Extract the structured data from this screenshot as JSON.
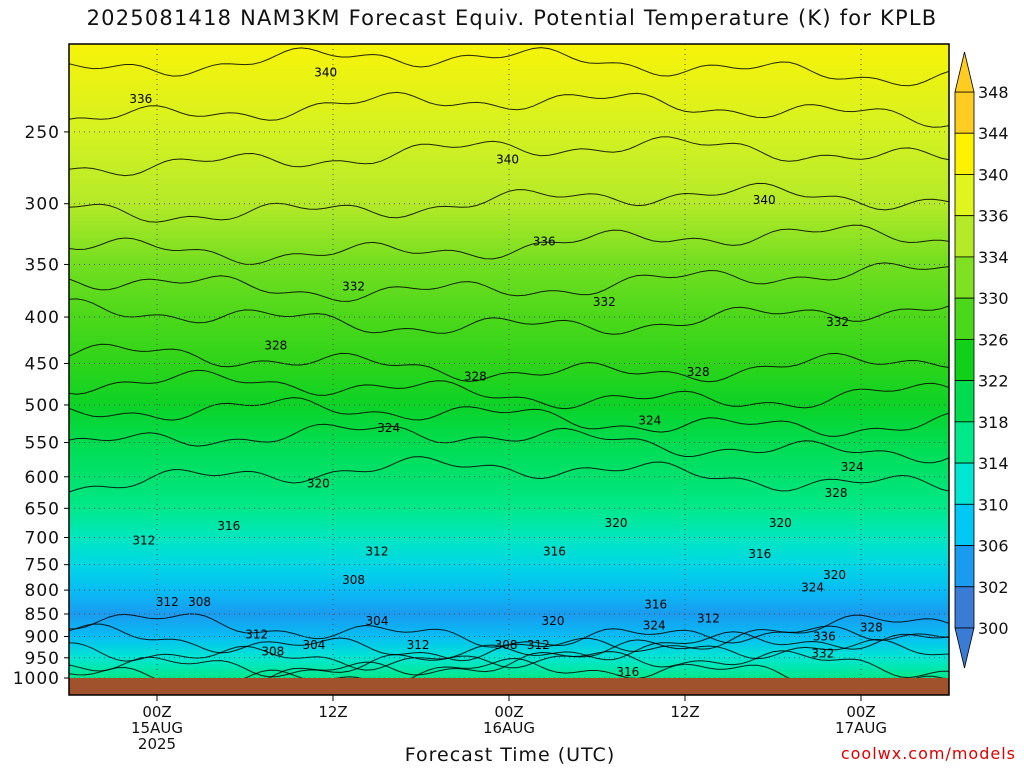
{
  "title": "2025081418 NAM3KM Forecast Equiv. Potential Temperature (K) for KPLB",
  "credit": "coolwx.com/models",
  "colors": {
    "ground": "#a0522d",
    "frame": "#000000",
    "grid": "#555555",
    "credit": "#e00000"
  },
  "chart_data": {
    "type": "heatmap",
    "title": "2025081418 NAM3KM Forecast Equiv. Potential Temperature (K) for KPLB",
    "xlabel": "Forecast Time (UTC)",
    "ylabel": "",
    "x_axis": {
      "ticks": [
        {
          "hour": 6,
          "lines": [
            "00Z",
            "15AUG",
            "2025"
          ]
        },
        {
          "hour": 18,
          "lines": [
            "12Z"
          ]
        },
        {
          "hour": 30,
          "lines": [
            "00Z",
            "16AUG"
          ]
        },
        {
          "hour": 42,
          "lines": [
            "12Z"
          ]
        },
        {
          "hour": 54,
          "lines": [
            "00Z",
            "17AUG"
          ]
        }
      ],
      "range_hours": [
        0,
        60
      ]
    },
    "y_axis": {
      "scale": "log-pressure",
      "unit": "hPa",
      "ticks": [
        250,
        300,
        350,
        400,
        450,
        500,
        550,
        600,
        650,
        700,
        750,
        800,
        850,
        900,
        950,
        1000
      ],
      "range": [
        200,
        1000
      ]
    },
    "grid": true,
    "colorbar": {
      "placement": "right",
      "levels": [
        300,
        302,
        306,
        310,
        314,
        318,
        322,
        326,
        330,
        334,
        336,
        340,
        344,
        348
      ],
      "labels": [
        "348",
        "344",
        "340",
        "336",
        "334",
        "330",
        "326",
        "322",
        "318",
        "314",
        "310",
        "306",
        "302",
        "300"
      ],
      "colors": [
        "#3a7bd5",
        "#1a9bf0",
        "#00c8f5",
        "#00e6d2",
        "#00e88a",
        "#00dc50",
        "#10d018",
        "#4cd81a",
        "#80e022",
        "#b4ea28",
        "#e0f51e",
        "#fff200",
        "#ffcc22"
      ]
    },
    "field_profile": [
      {
        "p": 1000,
        "thetae": 318
      },
      {
        "p": 950,
        "thetae": 314
      },
      {
        "p": 900,
        "thetae": 309
      },
      {
        "p": 850,
        "thetae": 306
      },
      {
        "p": 800,
        "thetae": 309
      },
      {
        "p": 750,
        "thetae": 312
      },
      {
        "p": 700,
        "thetae": 315
      },
      {
        "p": 650,
        "thetae": 318
      },
      {
        "p": 600,
        "thetae": 320
      },
      {
        "p": 550,
        "thetae": 322
      },
      {
        "p": 500,
        "thetae": 325
      },
      {
        "p": 450,
        "thetae": 328
      },
      {
        "p": 400,
        "thetae": 330
      },
      {
        "p": 350,
        "thetae": 333
      },
      {
        "p": 300,
        "thetae": 336
      },
      {
        "p": 250,
        "thetae": 339
      },
      {
        "p": 200,
        "thetae": 343
      }
    ],
    "contour_labels": [
      {
        "value": "340",
        "hour": 17.5,
        "p": 215
      },
      {
        "value": "336",
        "hour": 4.9,
        "p": 230
      },
      {
        "value": "340",
        "hour": 29.9,
        "p": 268
      },
      {
        "value": "340",
        "hour": 47.4,
        "p": 297
      },
      {
        "value": "336",
        "hour": 32.4,
        "p": 330
      },
      {
        "value": "332",
        "hour": 19.4,
        "p": 370
      },
      {
        "value": "332",
        "hour": 36.5,
        "p": 385
      },
      {
        "value": "332",
        "hour": 52.4,
        "p": 405
      },
      {
        "value": "328",
        "hour": 14.1,
        "p": 430
      },
      {
        "value": "328",
        "hour": 27.7,
        "p": 465
      },
      {
        "value": "328",
        "hour": 42.9,
        "p": 460
      },
      {
        "value": "324",
        "hour": 21.8,
        "p": 530
      },
      {
        "value": "324",
        "hour": 39.6,
        "p": 520
      },
      {
        "value": "324",
        "hour": 53.4,
        "p": 585
      },
      {
        "value": "328",
        "hour": 52.3,
        "p": 625
      },
      {
        "value": "320",
        "hour": 17.0,
        "p": 610
      },
      {
        "value": "320",
        "hour": 37.3,
        "p": 675
      },
      {
        "value": "320",
        "hour": 48.5,
        "p": 675
      },
      {
        "value": "316",
        "hour": 10.9,
        "p": 680
      },
      {
        "value": "316",
        "hour": 33.1,
        "p": 725
      },
      {
        "value": "316",
        "hour": 47.1,
        "p": 730
      },
      {
        "value": "312",
        "hour": 5.1,
        "p": 705
      },
      {
        "value": "312",
        "hour": 21.0,
        "p": 725
      },
      {
        "value": "308",
        "hour": 19.4,
        "p": 780
      },
      {
        "value": "320",
        "hour": 52.2,
        "p": 770
      },
      {
        "value": "324",
        "hour": 50.7,
        "p": 795
      },
      {
        "value": "312",
        "hour": 6.7,
        "p": 825
      },
      {
        "value": "308",
        "hour": 8.9,
        "p": 825
      },
      {
        "value": "316",
        "hour": 40.0,
        "p": 830
      },
      {
        "value": "304",
        "hour": 21.0,
        "p": 865
      },
      {
        "value": "320",
        "hour": 33.0,
        "p": 865
      },
      {
        "value": "312",
        "hour": 43.6,
        "p": 860
      },
      {
        "value": "324",
        "hour": 39.9,
        "p": 875
      },
      {
        "value": "312",
        "hour": 12.8,
        "p": 895
      },
      {
        "value": "336",
        "hour": 51.5,
        "p": 900
      },
      {
        "value": "328",
        "hour": 54.7,
        "p": 880
      },
      {
        "value": "304",
        "hour": 16.7,
        "p": 920
      },
      {
        "value": "312",
        "hour": 23.8,
        "p": 920
      },
      {
        "value": "308",
        "hour": 13.9,
        "p": 935
      },
      {
        "value": "308",
        "hour": 29.8,
        "p": 920
      },
      {
        "value": "312",
        "hour": 32.0,
        "p": 920
      },
      {
        "value": "332",
        "hour": 51.4,
        "p": 940
      },
      {
        "value": "316",
        "hour": 38.1,
        "p": 985
      }
    ]
  }
}
